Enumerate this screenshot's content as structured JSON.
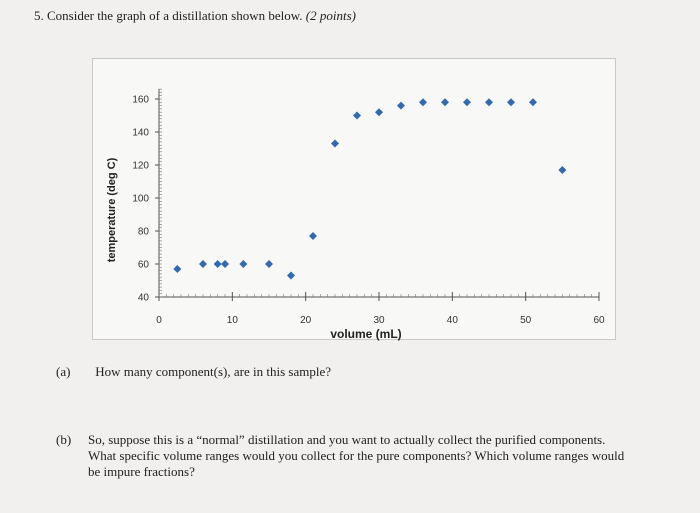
{
  "question": {
    "number": "5.",
    "text": "Consider the graph of a distillation shown below.",
    "points": "(2 points)"
  },
  "chart_data": {
    "type": "scatter",
    "xlabel": "volume (mL)",
    "ylabel": "temperature (deg C)",
    "xlim": [
      0,
      60
    ],
    "ylim": [
      40,
      160
    ],
    "x_ticks": [
      "0",
      "10",
      "20",
      "30",
      "40",
      "50",
      "60"
    ],
    "y_ticks": [
      "40",
      "60",
      "80",
      "100",
      "120",
      "140",
      "160"
    ],
    "marker_color": "#2f6ab3",
    "grid": false,
    "legend": "none",
    "points": [
      {
        "x": 2.5,
        "y": 57
      },
      {
        "x": 6,
        "y": 60
      },
      {
        "x": 8,
        "y": 60
      },
      {
        "x": 9,
        "y": 60
      },
      {
        "x": 11.5,
        "y": 60
      },
      {
        "x": 15,
        "y": 60
      },
      {
        "x": 18,
        "y": 53
      },
      {
        "x": 21,
        "y": 77
      },
      {
        "x": 24,
        "y": 133
      },
      {
        "x": 27,
        "y": 150
      },
      {
        "x": 30,
        "y": 152
      },
      {
        "x": 33,
        "y": 156
      },
      {
        "x": 36,
        "y": 158
      },
      {
        "x": 39,
        "y": 158
      },
      {
        "x": 42,
        "y": 158
      },
      {
        "x": 45,
        "y": 158
      },
      {
        "x": 48,
        "y": 158
      },
      {
        "x": 51,
        "y": 158
      },
      {
        "x": 55,
        "y": 117
      }
    ]
  },
  "part_a": {
    "label": "(a)",
    "text": "How many component(s), are in this sample?"
  },
  "part_b": {
    "label": "(b)",
    "line1": "So, suppose this is a “normal” distillation and you want to actually collect the purified components.",
    "line2": "What specific volume ranges would you collect for the pure components? Which volume ranges would",
    "line3": "be impure fractions?"
  }
}
